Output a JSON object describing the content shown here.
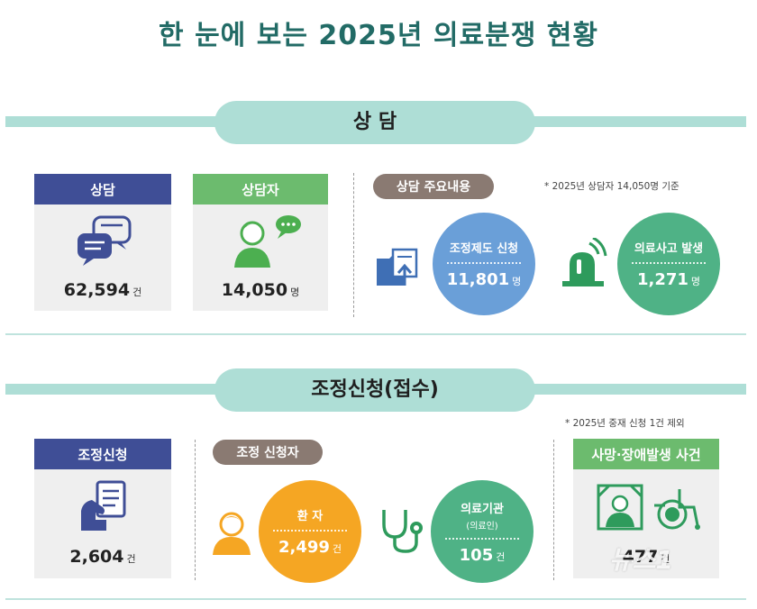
{
  "title": "한 눈에 보는 2025년 의료분쟁 현황",
  "section1": {
    "heading": "상 담",
    "consult": {
      "label": "상담",
      "value": "62,594",
      "unit": "건"
    },
    "consultees": {
      "label": "상담자",
      "value": "14,050",
      "unit": "명"
    },
    "main_tag": "상담 주요내용",
    "note": "* 2025년 상담자 14,050명 기준",
    "mediation_request": {
      "label": "조정제도 신청",
      "value": "11,801",
      "unit": "명"
    },
    "accident": {
      "label": "의료사고 발생",
      "value": "1,271",
      "unit": "명"
    }
  },
  "section2": {
    "heading": "조정신청(접수)",
    "note": "* 2025년 중재 신청 1건 제외",
    "apply": {
      "label": "조정신청",
      "value": "2,604",
      "unit": "건"
    },
    "applicant_tag": "조정 신청자",
    "patient": {
      "label": "환 자",
      "value": "2,499",
      "unit": "건"
    },
    "institution": {
      "label": "의료기관",
      "sub": "(의료인)",
      "value": "105",
      "unit": "건"
    },
    "death": {
      "label": "사망·장애발생 사건",
      "value": "477",
      "unit": "건"
    }
  },
  "watermark": "뉴스1",
  "colors": {
    "teal_band": "#aeded6",
    "navy": "#3f4e96",
    "green": "#6cbb6e",
    "blue_circle": "#6a9fd8",
    "green_circle": "#4fb286",
    "orange_circle": "#f5a623",
    "tag_brown": "#8a7a72"
  }
}
